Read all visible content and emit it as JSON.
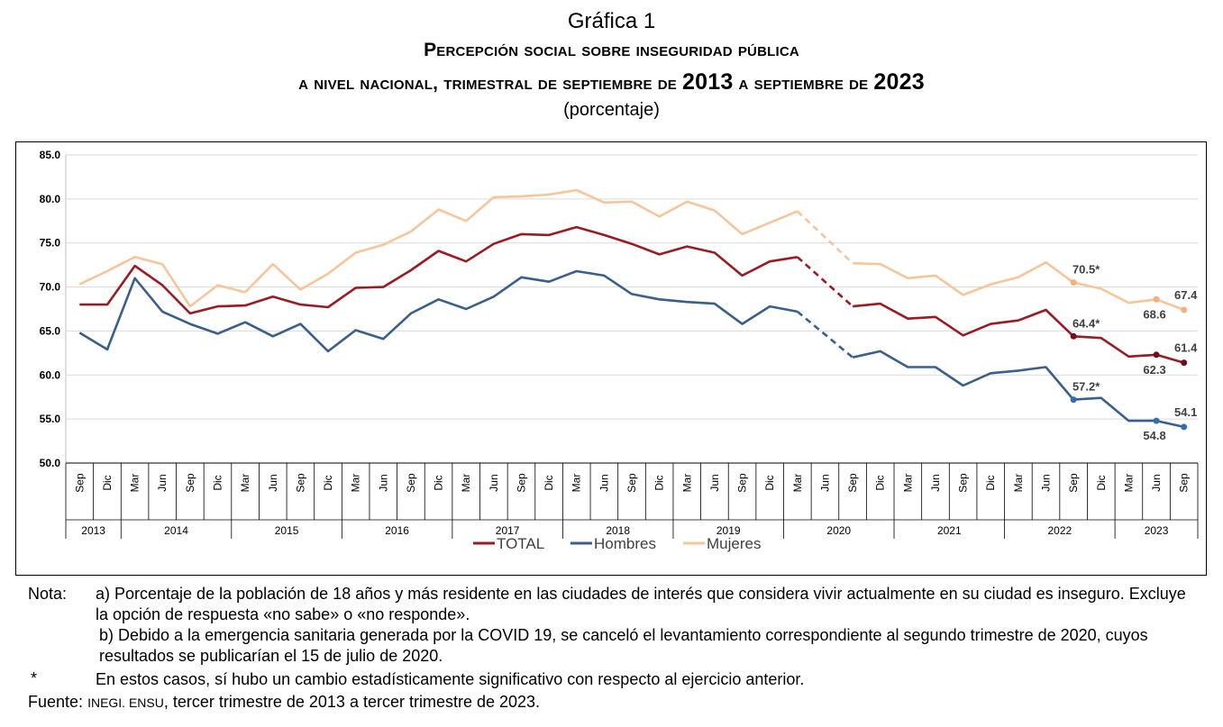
{
  "header": {
    "label": "Gráfica 1",
    "title_line1": "Percepción social sobre inseguridad pública",
    "title_line2_a": "a nivel nacional, trimestral de septiembre de",
    "title_line2_year1": "2013",
    "title_line2_b": "a septiembre de",
    "title_line2_year2": "2023",
    "unit": "(porcentaje)"
  },
  "chart_data": {
    "type": "line",
    "title": "Percepción social sobre inseguridad pública a nivel nacional, trimestral de septiembre de 2013 a septiembre de 2023",
    "ylabel": "porcentaje",
    "xlabel": "",
    "ylim": [
      50.0,
      85.0
    ],
    "yticks": [
      "50.0",
      "55.0",
      "60.0",
      "65.0",
      "70.0",
      "75.0",
      "80.0",
      "85.0"
    ],
    "grid": true,
    "legend_position": "bottom-center",
    "categories": [
      "Sep",
      "Dic",
      "Mar",
      "Jun",
      "Sep",
      "Dic",
      "Mar",
      "Jun",
      "Sep",
      "Dic",
      "Mar",
      "Jun",
      "Sep",
      "Dic",
      "Mar",
      "Jun",
      "Sep",
      "Dic",
      "Mar",
      "Jun",
      "Sep",
      "Dic",
      "Mar",
      "Jun",
      "Sep",
      "Dic",
      "Mar",
      "Jun",
      "Sep",
      "Dic",
      "Mar",
      "Jun",
      "Sep",
      "Dic",
      "Mar",
      "Jun",
      "Sep",
      "Dic",
      "Mar",
      "Jun",
      "Sep"
    ],
    "years": [
      {
        "label": "2013",
        "count": 2
      },
      {
        "label": "2014",
        "count": 4
      },
      {
        "label": "2015",
        "count": 4
      },
      {
        "label": "2016",
        "count": 4
      },
      {
        "label": "2017",
        "count": 4
      },
      {
        "label": "2018",
        "count": 4
      },
      {
        "label": "2019",
        "count": 4
      },
      {
        "label": "2020",
        "count": 4
      },
      {
        "label": "2021",
        "count": 4
      },
      {
        "label": "2022",
        "count": 4
      },
      {
        "label": "2023",
        "count": 3
      }
    ],
    "series": [
      {
        "name": "TOTAL",
        "color": "#9b1b23",
        "values": [
          68.0,
          68.0,
          72.4,
          70.2,
          67.0,
          67.8,
          67.9,
          68.9,
          68.0,
          67.7,
          69.9,
          70.0,
          71.9,
          74.1,
          72.9,
          74.9,
          76.0,
          75.9,
          76.8,
          75.9,
          74.9,
          73.7,
          74.6,
          73.9,
          71.3,
          72.9,
          73.4,
          null,
          67.8,
          68.1,
          66.4,
          66.6,
          64.5,
          65.8,
          66.2,
          67.4,
          64.4,
          64.2,
          62.1,
          62.3,
          61.4
        ]
      },
      {
        "name": "Hombres",
        "color": "#3a5f8a",
        "values": [
          64.8,
          62.9,
          71.0,
          67.2,
          65.8,
          64.7,
          66.0,
          64.4,
          65.8,
          62.7,
          65.1,
          64.1,
          67.0,
          68.6,
          67.5,
          68.9,
          71.1,
          70.6,
          71.8,
          71.3,
          69.2,
          68.6,
          68.3,
          68.1,
          65.8,
          67.8,
          67.2,
          null,
          62.0,
          62.7,
          60.9,
          60.9,
          58.8,
          60.2,
          60.5,
          60.9,
          57.2,
          57.4,
          54.8,
          54.8,
          54.1
        ]
      },
      {
        "name": "Mujeres",
        "color": "#f7c59a",
        "values": [
          70.3,
          71.8,
          73.4,
          72.6,
          67.8,
          70.2,
          69.4,
          72.6,
          69.7,
          71.5,
          73.9,
          74.8,
          76.3,
          78.8,
          77.5,
          80.2,
          80.3,
          80.5,
          81.0,
          79.6,
          79.7,
          78.0,
          79.7,
          78.7,
          76.0,
          77.3,
          78.6,
          null,
          72.7,
          72.6,
          71.0,
          71.3,
          69.1,
          70.3,
          71.1,
          72.8,
          70.5,
          69.8,
          68.2,
          68.6,
          67.4
        ]
      }
    ],
    "data_labels": [
      {
        "series": "Mujeres",
        "index": 36,
        "text": "70.5*"
      },
      {
        "series": "Mujeres",
        "index": 39,
        "text": "68.6"
      },
      {
        "series": "Mujeres",
        "index": 40,
        "text": "67.4"
      },
      {
        "series": "TOTAL",
        "index": 36,
        "text": "64.4*"
      },
      {
        "series": "TOTAL",
        "index": 39,
        "text": "62.3"
      },
      {
        "series": "TOTAL",
        "index": 40,
        "text": "61.4"
      },
      {
        "series": "Hombres",
        "index": 36,
        "text": "57.2*"
      },
      {
        "series": "Hombres",
        "index": 39,
        "text": "54.8"
      },
      {
        "series": "Hombres",
        "index": 40,
        "text": "54.1"
      }
    ],
    "dashed_gap": {
      "from_index": 26,
      "to_index": 28
    }
  },
  "notes": {
    "label": "Nota:",
    "a": "a) Porcentaje de la población de 18 años y más residente en las ciudades de interés que considera vivir actualmente en su ciudad es inseguro. Excluye la opción de respuesta «no sabe» o «no responde».",
    "b": "b) Debido a la emergencia sanitaria generada por la COVID 19, se canceló el levantamiento correspondiente al segundo trimestre de 2020, cuyos resultados se publicarían el 15 de julio de 2020.",
    "star": "*",
    "star_text": "En estos casos, sí hubo un cambio estadísticamente significativo con respecto al ejercicio anterior.",
    "source_label": "Fuente:",
    "source_org": "INEGI. ENSU",
    "source_text": ", tercer trimestre de 2013 a tercer trimestre de 2023."
  }
}
